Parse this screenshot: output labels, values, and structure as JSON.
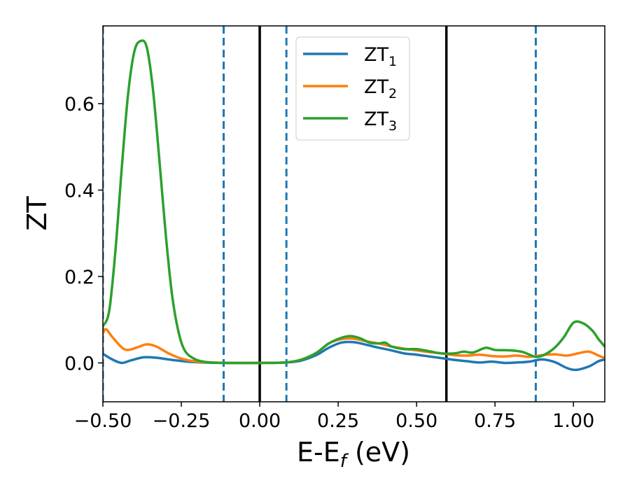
{
  "chart_data": {
    "type": "line",
    "title": "",
    "xlabel": "E-E",
    "xlabel_sub": "f",
    "xlabel_unit": " (eV)",
    "ylabel": "ZT",
    "xlim": [
      -0.5,
      1.1
    ],
    "ylim": [
      -0.09,
      0.78
    ],
    "xticks": [
      -0.5,
      -0.25,
      0.0,
      0.25,
      0.5,
      0.75,
      1.0
    ],
    "xtick_labels": [
      "−0.50",
      "−0.25",
      "0.00",
      "0.25",
      "0.50",
      "0.75",
      "1.00"
    ],
    "yticks": [
      0.0,
      0.2,
      0.4,
      0.6
    ],
    "ytick_labels": [
      "0.0",
      "0.2",
      "0.4",
      "0.6"
    ],
    "grid": false,
    "legend_position": "top-center",
    "vertical_lines": [
      {
        "x": -0.5,
        "style": "dashed",
        "color": "#1f77b4"
      },
      {
        "x": -0.115,
        "style": "dashed",
        "color": "#1f77b4"
      },
      {
        "x": 0.0,
        "style": "solid",
        "color": "#000000"
      },
      {
        "x": 0.085,
        "style": "dashed",
        "color": "#1f77b4"
      },
      {
        "x": 0.595,
        "style": "solid",
        "color": "#000000"
      },
      {
        "x": 0.88,
        "style": "dashed",
        "color": "#1f77b4"
      }
    ],
    "series": [
      {
        "name": "ZT",
        "name_sub": "1",
        "color": "#1f77b4",
        "points": [
          [
            -0.5,
            0.021
          ],
          [
            -0.47,
            0.008
          ],
          [
            -0.44,
            0.0
          ],
          [
            -0.41,
            0.006
          ],
          [
            -0.37,
            0.013
          ],
          [
            -0.33,
            0.012
          ],
          [
            -0.28,
            0.007
          ],
          [
            -0.23,
            0.003
          ],
          [
            -0.18,
            0.001
          ],
          [
            -0.12,
            0.0
          ],
          [
            0.0,
            0.0
          ],
          [
            0.08,
            0.001
          ],
          [
            0.13,
            0.005
          ],
          [
            0.18,
            0.018
          ],
          [
            0.22,
            0.035
          ],
          [
            0.26,
            0.047
          ],
          [
            0.3,
            0.048
          ],
          [
            0.34,
            0.042
          ],
          [
            0.38,
            0.035
          ],
          [
            0.42,
            0.029
          ],
          [
            0.46,
            0.022
          ],
          [
            0.5,
            0.019
          ],
          [
            0.54,
            0.015
          ],
          [
            0.58,
            0.011
          ],
          [
            0.62,
            0.007
          ],
          [
            0.66,
            0.004
          ],
          [
            0.7,
            0.001
          ],
          [
            0.74,
            0.003
          ],
          [
            0.78,
            0.0
          ],
          [
            0.82,
            0.001
          ],
          [
            0.86,
            0.003
          ],
          [
            0.9,
            0.008
          ],
          [
            0.94,
            0.002
          ],
          [
            0.98,
            -0.012
          ],
          [
            1.01,
            -0.016
          ],
          [
            1.05,
            -0.008
          ],
          [
            1.08,
            0.004
          ],
          [
            1.1,
            0.008
          ]
        ]
      },
      {
        "name": "ZT",
        "name_sub": "2",
        "color": "#ff7f0e",
        "points": [
          [
            -0.5,
            0.068
          ],
          [
            -0.49,
            0.078
          ],
          [
            -0.47,
            0.06
          ],
          [
            -0.44,
            0.036
          ],
          [
            -0.42,
            0.03
          ],
          [
            -0.39,
            0.036
          ],
          [
            -0.36,
            0.043
          ],
          [
            -0.33,
            0.038
          ],
          [
            -0.29,
            0.022
          ],
          [
            -0.25,
            0.01
          ],
          [
            -0.2,
            0.003
          ],
          [
            -0.15,
            0.001
          ],
          [
            -0.1,
            0.0
          ],
          [
            0.0,
            0.0
          ],
          [
            0.08,
            0.001
          ],
          [
            0.13,
            0.007
          ],
          [
            0.18,
            0.023
          ],
          [
            0.22,
            0.045
          ],
          [
            0.26,
            0.055
          ],
          [
            0.3,
            0.056
          ],
          [
            0.34,
            0.05
          ],
          [
            0.38,
            0.045
          ],
          [
            0.42,
            0.038
          ],
          [
            0.46,
            0.033
          ],
          [
            0.5,
            0.029
          ],
          [
            0.54,
            0.025
          ],
          [
            0.58,
            0.022
          ],
          [
            0.62,
            0.018
          ],
          [
            0.66,
            0.017
          ],
          [
            0.7,
            0.019
          ],
          [
            0.74,
            0.016
          ],
          [
            0.78,
            0.015
          ],
          [
            0.82,
            0.017
          ],
          [
            0.86,
            0.014
          ],
          [
            0.9,
            0.018
          ],
          [
            0.94,
            0.02
          ],
          [
            0.98,
            0.017
          ],
          [
            1.02,
            0.023
          ],
          [
            1.05,
            0.026
          ],
          [
            1.08,
            0.017
          ],
          [
            1.1,
            0.011
          ]
        ]
      },
      {
        "name": "ZT",
        "name_sub": "3",
        "color": "#2ca02c",
        "points": [
          [
            -0.5,
            0.085
          ],
          [
            -0.48,
            0.12
          ],
          [
            -0.46,
            0.26
          ],
          [
            -0.44,
            0.45
          ],
          [
            -0.42,
            0.62
          ],
          [
            -0.4,
            0.72
          ],
          [
            -0.38,
            0.745
          ],
          [
            -0.36,
            0.73
          ],
          [
            -0.34,
            0.63
          ],
          [
            -0.32,
            0.47
          ],
          [
            -0.3,
            0.3
          ],
          [
            -0.28,
            0.16
          ],
          [
            -0.26,
            0.075
          ],
          [
            -0.24,
            0.03
          ],
          [
            -0.21,
            0.01
          ],
          [
            -0.17,
            0.002
          ],
          [
            -0.1,
            0.0
          ],
          [
            0.0,
            0.0
          ],
          [
            0.08,
            0.001
          ],
          [
            0.13,
            0.007
          ],
          [
            0.18,
            0.023
          ],
          [
            0.22,
            0.045
          ],
          [
            0.26,
            0.058
          ],
          [
            0.29,
            0.062
          ],
          [
            0.32,
            0.057
          ],
          [
            0.35,
            0.047
          ],
          [
            0.38,
            0.045
          ],
          [
            0.4,
            0.047
          ],
          [
            0.42,
            0.038
          ],
          [
            0.46,
            0.032
          ],
          [
            0.5,
            0.032
          ],
          [
            0.54,
            0.027
          ],
          [
            0.58,
            0.022
          ],
          [
            0.62,
            0.022
          ],
          [
            0.65,
            0.026
          ],
          [
            0.68,
            0.024
          ],
          [
            0.72,
            0.035
          ],
          [
            0.75,
            0.03
          ],
          [
            0.8,
            0.029
          ],
          [
            0.84,
            0.025
          ],
          [
            0.88,
            0.014
          ],
          [
            0.91,
            0.02
          ],
          [
            0.94,
            0.035
          ],
          [
            0.97,
            0.06
          ],
          [
            1.0,
            0.093
          ],
          [
            1.03,
            0.092
          ],
          [
            1.06,
            0.075
          ],
          [
            1.08,
            0.055
          ],
          [
            1.1,
            0.038
          ]
        ]
      }
    ]
  }
}
